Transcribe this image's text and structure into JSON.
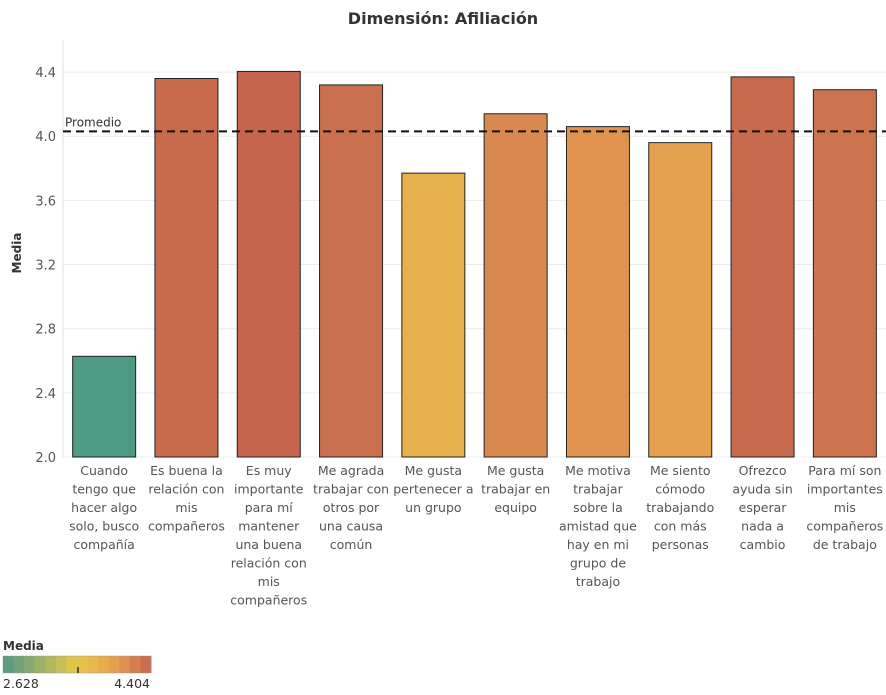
{
  "chart_data": {
    "type": "bar",
    "title": "Dimensión: Afiliación",
    "ylabel": "Media",
    "xlabel": "",
    "ylim": [
      2.0,
      4.6
    ],
    "yticks": [
      "2.0",
      "2.4",
      "2.8",
      "3.2",
      "3.6",
      "4.0",
      "4.4"
    ],
    "grid": true,
    "categories": [
      [
        "Cuando",
        "tengo que",
        "hacer algo",
        "solo, busco",
        "compañía"
      ],
      [
        "Es buena la",
        "relación con",
        "mis",
        "compañeros"
      ],
      [
        "Es muy",
        "importante",
        "para mí",
        "mantener",
        "una buena",
        "relación con",
        "mis",
        "compañeros"
      ],
      [
        "Me agrada",
        "trabajar con",
        "otros por",
        "una causa",
        "común"
      ],
      [
        "Me gusta",
        "pertenecer a",
        "un grupo"
      ],
      [
        "Me gusta",
        "trabajar en",
        "equipo"
      ],
      [
        "Me motiva",
        "trabajar",
        "sobre la",
        "amistad que",
        "hay en mi",
        "grupo de",
        "trabajo"
      ],
      [
        "Me siento",
        "cómodo",
        "trabajando",
        "con más",
        "personas"
      ],
      [
        "Ofrezco",
        "ayuda sin",
        "esperar",
        "nada a",
        "cambio"
      ],
      [
        "Para mí son",
        "importantes",
        "mis",
        "compañeros",
        "de trabajo"
      ]
    ],
    "values": [
      2.628,
      4.36,
      4.404,
      4.32,
      3.77,
      4.14,
      4.06,
      3.96,
      4.37,
      4.29
    ],
    "reference_line": {
      "label": "Promedio",
      "value": 4.03
    },
    "color_legend": {
      "title": "Media",
      "min_label": "2.628",
      "max_label": "4.404",
      "min": 2.628,
      "max": 4.404,
      "colors": [
        "#4f9a85",
        "#e9c84a",
        "#e6a150",
        "#c5654d"
      ]
    }
  }
}
